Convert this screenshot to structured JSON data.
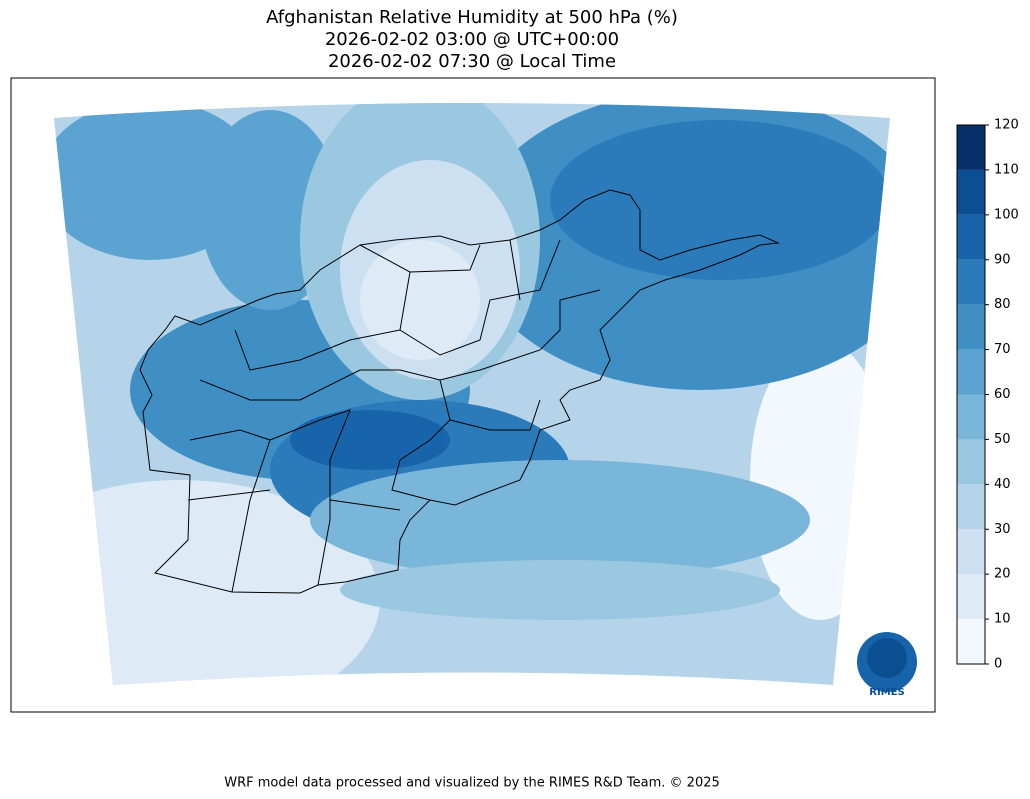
{
  "title": [
    "Afghanistan Relative Humidity at 500 hPa (%)",
    "2026-02-02 03:00 @ UTC+00:00",
    "2026-02-02 07:30 @ Local Time"
  ],
  "colorbar": {
    "lim": [
      0,
      120
    ],
    "ticks": [
      0,
      10,
      20,
      30,
      40,
      50,
      60,
      70,
      80,
      90,
      100,
      110,
      120
    ],
    "colors": [
      "#f2f8fd",
      "#deebf7",
      "#cde0f1",
      "#b5d4e9",
      "#9ac8e0",
      "#7ab6d9",
      "#5ba3d0",
      "#3f8fc5",
      "#2b7bba",
      "#1764ab",
      "#0b4f93",
      "#08306b"
    ]
  },
  "logo": "RIMES",
  "footer": "WRF model data processed and visualized by the RIMES R&D Team. © 2025"
}
